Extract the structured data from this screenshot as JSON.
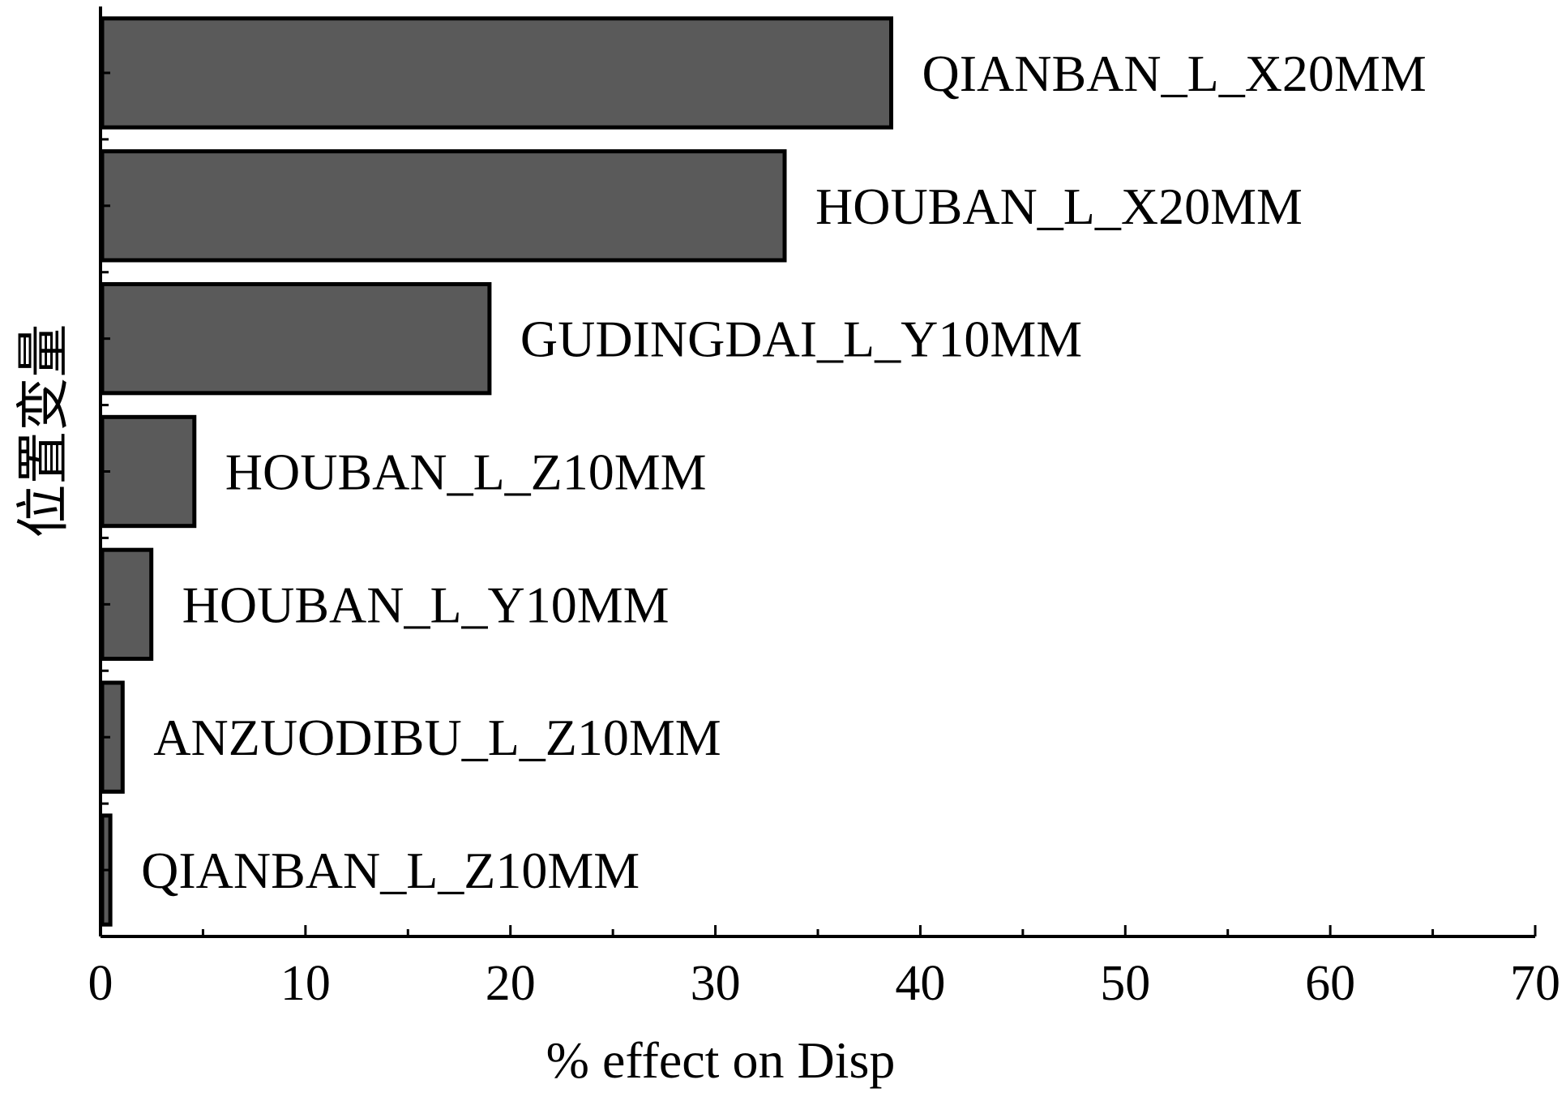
{
  "chart_data": {
    "type": "bar",
    "orientation": "horizontal",
    "categories": [
      "QIANBAN_L_X20MM",
      "HOUBAN_L_X20MM",
      "GUDINGDAI_L_Y10MM",
      "HOUBAN_L_Z10MM",
      "HOUBAN_L_Y10MM",
      "ANZUODIBU_L_Z10MM",
      "QIANBAN_L_Z10MM"
    ],
    "values": [
      38.5,
      33.3,
      18.9,
      4.5,
      2.4,
      1.0,
      0.4
    ],
    "title": "",
    "xlabel": "% effect on Disp",
    "ylabel": "位置变量",
    "xlim": [
      0,
      70
    ],
    "xticks": [
      0,
      10,
      20,
      30,
      40,
      50,
      60,
      70
    ],
    "xtick_labels": [
      "0",
      "10",
      "20",
      "30",
      "40",
      "50",
      "60",
      "70"
    ],
    "grid": false,
    "legend": "none",
    "colors": {
      "bar_fill": "#5a5a5a",
      "bar_edge": "#000000",
      "axis": "#000000"
    }
  }
}
